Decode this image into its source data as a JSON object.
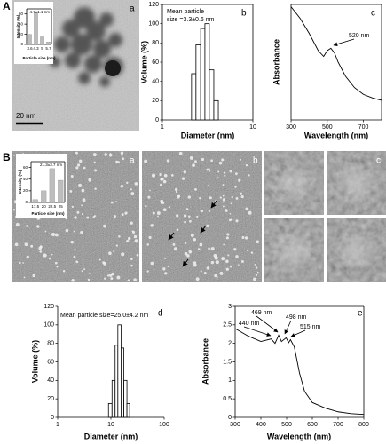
{
  "figure": {
    "panels": [
      "A",
      "B"
    ]
  },
  "images": [
    {
      "label": "a",
      "scale_bar": "20 nm"
    },
    {
      "label": "a"
    },
    {
      "label": "b"
    },
    {
      "label": "c"
    }
  ],
  "chart_data": [
    {
      "type": "bar",
      "categories": [
        "3.6",
        "4.3",
        "5",
        "5.7"
      ],
      "values": [
        20,
        62,
        15,
        5
      ],
      "color": "#bdbdbd",
      "ylim": [
        0,
        70
      ],
      "yticks": [
        0,
        20,
        40,
        60
      ],
      "xlabel": "Particle size (nm)",
      "ylabel": "Intensity (%)",
      "annotations": [
        "4.7±1.1 nm"
      ],
      "box": true
    },
    {
      "type": "histogram",
      "bins": [
        2.1,
        2.35,
        2.65,
        2.95,
        3.3,
        3.7,
        4.15
      ],
      "values": [
        48,
        78,
        95,
        100,
        52,
        20
      ],
      "color": "#ffffff",
      "xscale": "log",
      "xlim": [
        1,
        10
      ],
      "xticks": [
        1,
        10
      ],
      "ylim": [
        0,
        120
      ],
      "yticks": [
        0,
        20,
        40,
        60,
        80,
        100,
        120
      ],
      "xlabel": "Diameter (nm)",
      "ylabel": "Volume (%)",
      "annotations": [
        "Mean particle",
        "size =3.3±0.6 nm"
      ],
      "label": "b",
      "box": true
    },
    {
      "type": "line",
      "x": [
        300,
        350,
        400,
        450,
        480,
        500,
        520,
        540,
        560,
        600,
        650,
        700,
        750,
        800
      ],
      "values": [
        0.98,
        0.88,
        0.75,
        0.6,
        0.55,
        0.6,
        0.62,
        0.58,
        0.5,
        0.38,
        0.28,
        0.22,
        0.19,
        0.17
      ],
      "color": "#000000",
      "xlim": [
        300,
        800
      ],
      "xticks": [
        300,
        500,
        700
      ],
      "ylim": [
        0,
        1
      ],
      "xlabel": "Wavelength (nm)",
      "ylabel": "Absorbance",
      "annotations": [
        "520 nm"
      ],
      "label": "c",
      "box": true
    },
    {
      "type": "bar",
      "categories": [
        "17.5",
        "20",
        "22.5",
        "25"
      ],
      "values": [
        5,
        20,
        58,
        38
      ],
      "color": "#bdbdbd",
      "ylim": [
        0,
        70
      ],
      "yticks": [
        0,
        20,
        40,
        60
      ],
      "xlabel": "Particle size (nm)",
      "ylabel": "Intensity (%)",
      "annotations": [
        "21.3±3.7 nm"
      ],
      "box": true
    },
    {
      "type": "histogram",
      "bins": [
        9,
        10.5,
        12,
        13.5,
        15.5,
        17.5,
        20,
        22.5
      ],
      "values": [
        15,
        40,
        78,
        100,
        75,
        40,
        15
      ],
      "color": "#ffffff",
      "xscale": "log",
      "xlim": [
        1,
        100
      ],
      "xticks": [
        1,
        10,
        100
      ],
      "ylim": [
        0,
        120
      ],
      "yticks": [
        0,
        20,
        40,
        60,
        80,
        100,
        120
      ],
      "xlabel": "Diameter (nm)",
      "ylabel": "Volume (%)",
      "annotations": [
        "Mean particle size=25.0±4.2 nm"
      ],
      "label": "d",
      "box": false
    },
    {
      "type": "line",
      "x": [
        300,
        350,
        400,
        440,
        455,
        469,
        480,
        498,
        508,
        515,
        530,
        550,
        570,
        600,
        650,
        700,
        750,
        800
      ],
      "values": [
        2.4,
        2.2,
        2.05,
        2.12,
        2.0,
        2.22,
        2.05,
        2.15,
        2.02,
        2.1,
        1.9,
        1.2,
        0.7,
        0.4,
        0.25,
        0.15,
        0.1,
        0.08
      ],
      "color": "#000000",
      "xlim": [
        300,
        800
      ],
      "xticks": [
        300,
        400,
        500,
        600,
        700,
        800
      ],
      "ylim": [
        0,
        3
      ],
      "yticks": [
        0,
        0.5,
        1,
        1.5,
        2,
        2.5,
        3
      ],
      "xlabel": "Wavelength (nm)",
      "ylabel": "Absorbance",
      "annotations": [
        "469 nm",
        "440 nm",
        "498 nm",
        "515 nm"
      ],
      "label": "e",
      "box": true
    }
  ]
}
